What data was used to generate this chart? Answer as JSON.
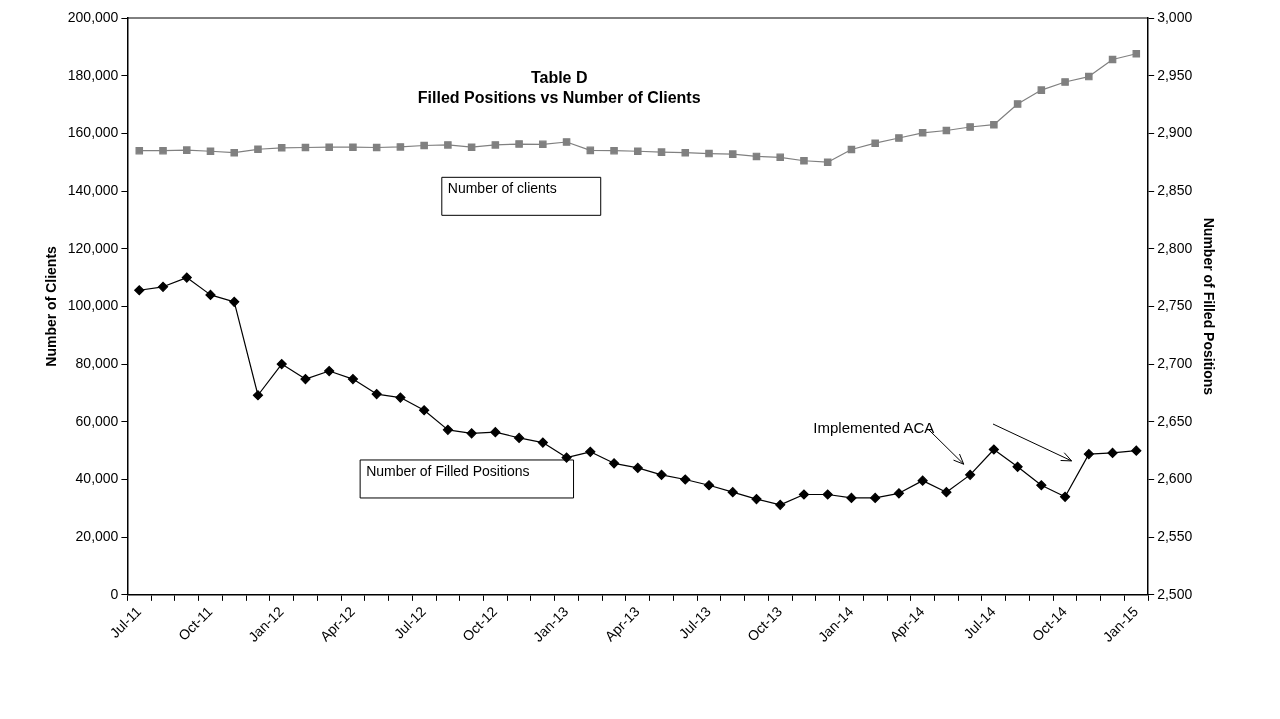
{
  "chart_data": {
    "type": "line",
    "title": "Table D",
    "subtitle": "Filled Positions vs Number of Clients",
    "ylabel": "Number of Clients",
    "y2label": "Number of Filled Positions",
    "categories": [
      "Jul-11",
      null,
      null,
      "Oct-11",
      null,
      null,
      "Jan-12",
      null,
      null,
      "Apr-12",
      null,
      null,
      "Jul-12",
      null,
      null,
      "Oct-12",
      null,
      null,
      "Jan-13",
      null,
      null,
      "Apr-13",
      null,
      null,
      "Jul-13",
      null,
      null,
      "Oct-13",
      null,
      null,
      "Jan-14",
      null,
      null,
      "Apr-14",
      null,
      null,
      "Jul-14",
      null,
      null,
      "Oct-14",
      null,
      null,
      "Jan-15"
    ],
    "series": [
      {
        "name": "Number of clients",
        "color": "#808080",
        "marker": "square",
        "values": [
          154000,
          154000,
          154200,
          153800,
          153300,
          154500,
          155000,
          155100,
          155200,
          155200,
          155100,
          155300,
          155800,
          156000,
          155200,
          156000,
          156300,
          156200,
          157000,
          154100,
          154000,
          153800,
          153500,
          153300,
          153000,
          152800,
          152000,
          151700,
          150500,
          150000,
          154400,
          156600,
          158400,
          160200,
          161000,
          162200,
          163000,
          170200,
          175000,
          177800,
          179700,
          185600,
          187600
        ]
      },
      {
        "name": "Number of Filled Positions",
        "color": "#000000",
        "marker": "diamond",
        "axis": "y2",
        "values": [
          2764,
          2767,
          2775,
          2760,
          2754,
          2673,
          2700,
          2687,
          2694,
          2687,
          2674,
          2671,
          2660,
          2643,
          2640,
          2641,
          2636,
          2632,
          2619,
          2624,
          2614,
          2610,
          2604,
          2600,
          2595,
          2589,
          2583,
          2578,
          2587,
          2587,
          2584,
          2584,
          2588,
          2599,
          2589,
          2604,
          2626,
          2611,
          2595,
          2585,
          2622,
          2623,
          2625
        ]
      }
    ],
    "ylim": [
      0,
      200000
    ],
    "yticks": [
      0,
      {
        "value": 20000,
        "label": "20,000"
      },
      {
        "value": 40000,
        "label": "40,000"
      },
      {
        "value": 60000,
        "label": "60,000"
      },
      {
        "value": 80000,
        "label": "80,000"
      },
      {
        "value": 100000,
        "label": "100,000"
      },
      {
        "value": 120000,
        "label": "120,000"
      },
      {
        "value": 140000,
        "label": "140,000"
      },
      {
        "value": 160000,
        "label": "160,000"
      },
      {
        "value": 180000,
        "label": "180,000"
      },
      {
        "value": 200000,
        "label": "200,000"
      }
    ],
    "y2lim": [
      2500,
      3000
    ],
    "y2ticks": [
      {
        "value": 2500,
        "label": "2,500"
      },
      {
        "value": 2550,
        "label": "2,550"
      },
      {
        "value": 2600,
        "label": "2,600"
      },
      {
        "value": 2650,
        "label": "2,650"
      },
      {
        "value": 2700,
        "label": "2,700"
      },
      {
        "value": 2750,
        "label": "2,750"
      },
      {
        "value": 2800,
        "label": "2,800"
      },
      {
        "value": 2850,
        "label": "2,850"
      },
      {
        "value": 2900,
        "label": "2,900"
      },
      {
        "value": 2950,
        "label": "2,950"
      },
      {
        "value": 3000,
        "label": "3,000"
      }
    ],
    "annotations": [
      "Implemented ACA"
    ],
    "legend": false,
    "grid": false
  }
}
